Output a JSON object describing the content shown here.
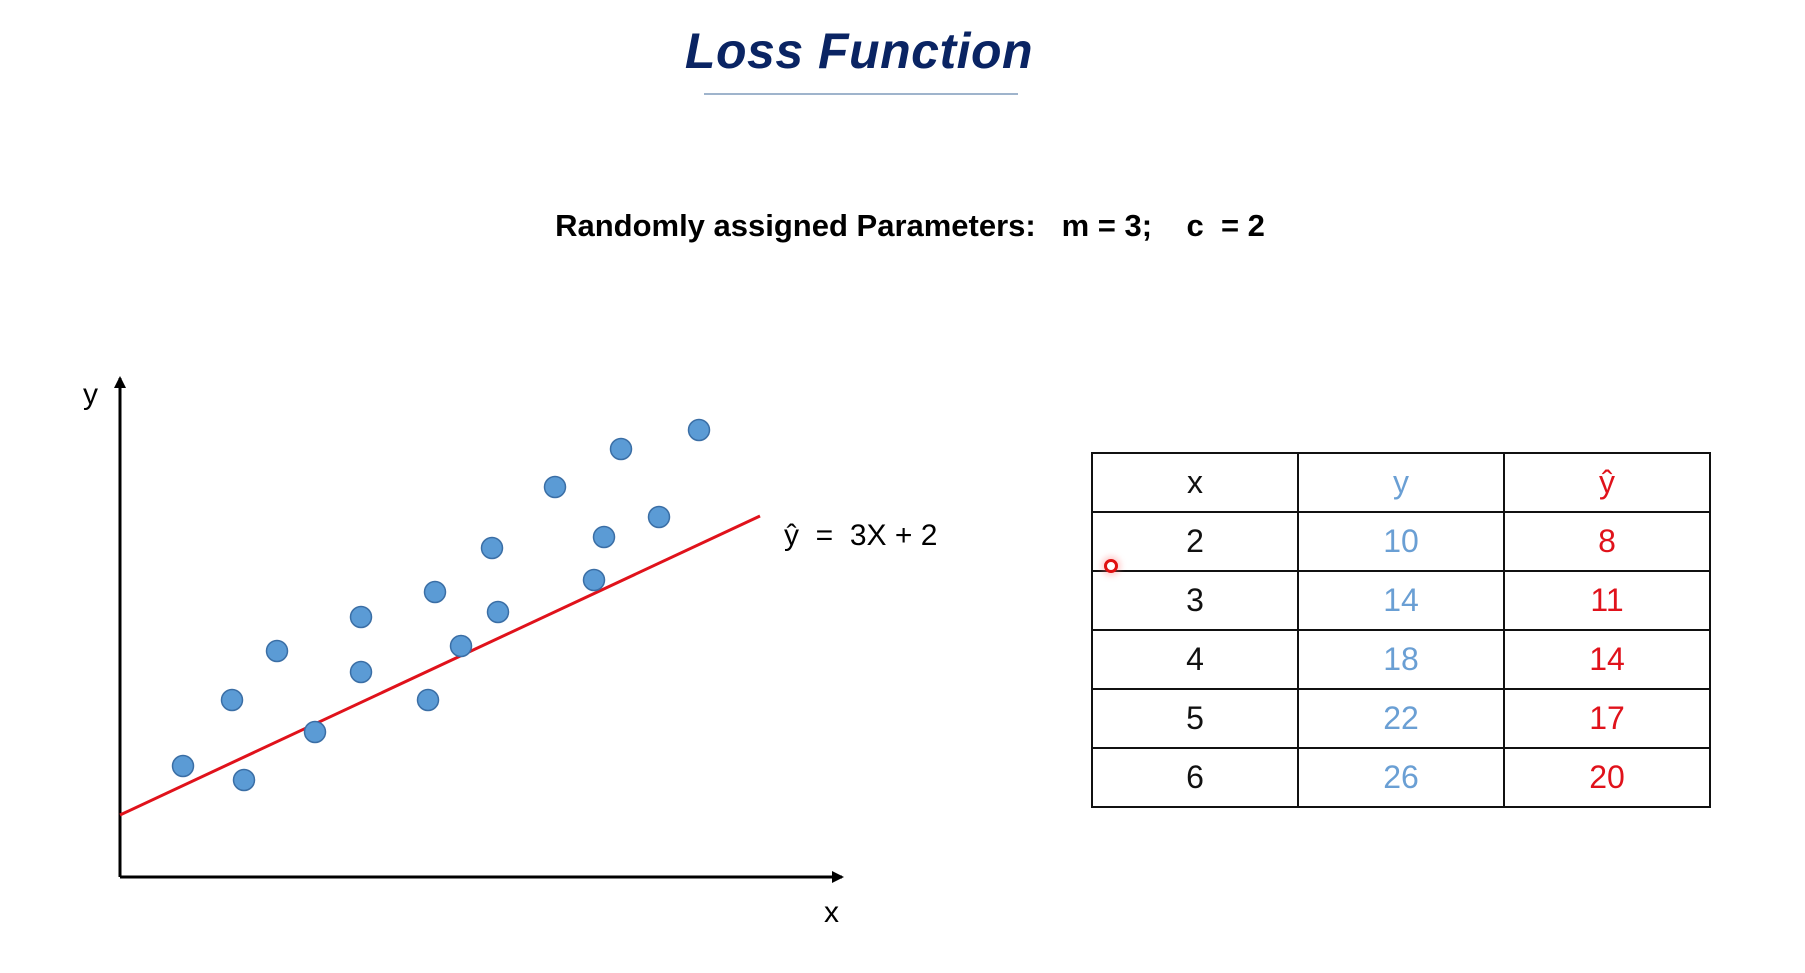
{
  "title": "Loss Function",
  "params_line": "Randomly assigned Parameters:   m = 3;    c  = 2",
  "equation": "ŷ  =  3X + 2",
  "chart_data": {
    "type": "scatter",
    "xlabel": "x",
    "ylabel": "y",
    "fit_line": {
      "slope_m": 3,
      "intercept_c": 2,
      "color": "#e0121b"
    },
    "point_color": "#5b9bd5"
  },
  "table": {
    "headers": [
      "x",
      "y",
      "ŷ"
    ],
    "rows": [
      [
        "2",
        "10",
        "8"
      ],
      [
        "3",
        "14",
        "11"
      ],
      [
        "4",
        "18",
        "14"
      ],
      [
        "5",
        "22",
        "17"
      ],
      [
        "6",
        "26",
        "20"
      ]
    ],
    "colors": {
      "x": "#111111",
      "y": "#6a9fd4",
      "yhat": "#e0121b"
    }
  }
}
